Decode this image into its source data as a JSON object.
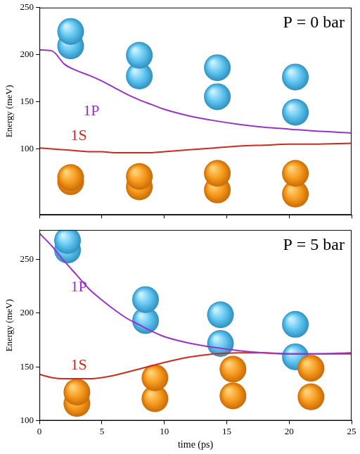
{
  "chart_data": [
    {
      "type": "line",
      "title": "P = 0 bar",
      "x": [
        0,
        1,
        2,
        3,
        4,
        5,
        6,
        7,
        8,
        9,
        10,
        12,
        14,
        16,
        18,
        20,
        22,
        25
      ],
      "series": [
        {
          "name": "1P",
          "color": "#9933cc",
          "values": [
            205,
            204,
            190,
            183,
            178,
            172,
            165,
            158,
            152,
            147,
            142,
            135,
            130,
            126,
            123,
            121,
            119,
            117
          ]
        },
        {
          "name": "1S",
          "color": "#cc2b1f",
          "values": [
            101,
            100,
            99,
            98,
            97,
            97,
            96,
            96,
            96,
            96,
            97,
            99,
            101,
            103,
            104,
            105,
            105,
            106
          ]
        }
      ],
      "xlim": [
        0,
        25
      ],
      "xticks": [
        0,
        5,
        10,
        15,
        20,
        25
      ],
      "ylim": [
        30,
        250
      ],
      "yticks": [
        100,
        150,
        200,
        250
      ],
      "y_label": "Energy (meV)",
      "grid": false,
      "tick_labels": "y"
    },
    {
      "type": "line",
      "title": "P = 5 bar",
      "x": [
        0,
        1,
        2,
        3,
        4,
        5,
        6,
        7,
        8,
        9,
        10,
        12,
        14,
        16,
        18,
        20,
        22,
        25
      ],
      "series": [
        {
          "name": "1P",
          "color": "#9933cc",
          "values": [
            274,
            262,
            248,
            235,
            222,
            212,
            203,
            195,
            189,
            183,
            178,
            172,
            168,
            165,
            163,
            162,
            162,
            163
          ]
        },
        {
          "name": "1S",
          "color": "#cc2b1f",
          "values": [
            143,
            140,
            139,
            139,
            139,
            140,
            142,
            145,
            148,
            151,
            154,
            159,
            162,
            163,
            163,
            162,
            162,
            162
          ]
        }
      ],
      "xlim": [
        0,
        25
      ],
      "xticks": [
        0,
        5,
        10,
        15,
        20,
        25
      ],
      "ylim": [
        100,
        277
      ],
      "yticks": [
        100,
        150,
        200,
        250
      ],
      "x_label": "time (ps)",
      "y_label": "Energy (meV)",
      "grid": false
    }
  ]
}
